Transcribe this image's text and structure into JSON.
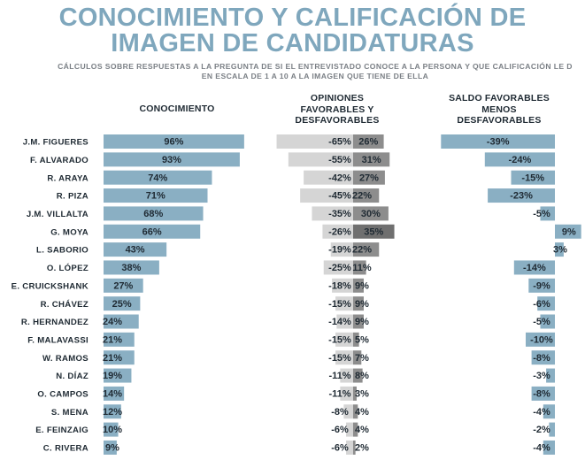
{
  "title_line1": "CONOCIMIENTO Y CALIFICACIÓN DE",
  "title_line2": "IMAGEN DE CANDIDATURAS",
  "subtitle_line1": "CÁLCULOS SOBRE RESPUESTAS A LA PREGUNTA DE SI EL ENTREVISTADO CONOCE A LA PERSONA Y QUE CALIFICACIÓN LE D",
  "subtitle_line2": "EN ESCALA DE 1 A 10 A LA IMAGEN QUE TIENE DE ELLA",
  "headers": {
    "conocimiento": "CONOCIMIENTO",
    "opiniones": "OPINIONES FAVORABLES Y DESFAVORABLES",
    "saldo": "SALDO FAVORABLES MENOS DESFAVORABLES"
  },
  "colors": {
    "title": "#7fa7bd",
    "bar_blue": "#8aafc3",
    "unfavorable": "#d5d5d5",
    "favorable": "#8d8d8d",
    "favorable_max": "#6f6f6f"
  },
  "chart_data": {
    "type": "bar",
    "categories": [
      "J.M. FIGUERES",
      "F. ALVARADO",
      "R. ARAYA",
      "R. PIZA",
      "J.M. VILLALTA",
      "G. MOYA",
      "L. SABORIO",
      "O. LÓPEZ",
      "E. CRUICKSHANK",
      "R. CHÁVEZ",
      "R. HERNANDEZ",
      "F. MALAVASSI",
      "W. RAMOS",
      "N. DÍAZ",
      "O. CAMPOS",
      "S. MENA",
      "E. FEINZAIG",
      "C. RIVERA"
    ],
    "series": [
      {
        "name": "CONOCIMIENTO",
        "unit": "%",
        "values": [
          96,
          93,
          74,
          71,
          68,
          66,
          43,
          38,
          27,
          25,
          24,
          21,
          21,
          19,
          14,
          12,
          10,
          9
        ]
      },
      {
        "name": "DESFAVORABLES",
        "unit": "%",
        "values": [
          -65,
          -55,
          -42,
          -45,
          -35,
          -26,
          -19,
          -25,
          -18,
          -15,
          -14,
          -15,
          -15,
          -11,
          -11,
          -8,
          -6,
          -6
        ]
      },
      {
        "name": "FAVORABLES",
        "unit": "%",
        "values": [
          26,
          31,
          27,
          22,
          30,
          35,
          22,
          11,
          9,
          9,
          9,
          5,
          7,
          8,
          3,
          4,
          4,
          2
        ]
      },
      {
        "name": "SALDO",
        "unit": "%",
        "values": [
          -39,
          -24,
          -15,
          -23,
          -5,
          9,
          3,
          -14,
          -9,
          -6,
          -5,
          -10,
          -8,
          -3,
          -8,
          -4,
          -2,
          -4
        ]
      }
    ]
  }
}
